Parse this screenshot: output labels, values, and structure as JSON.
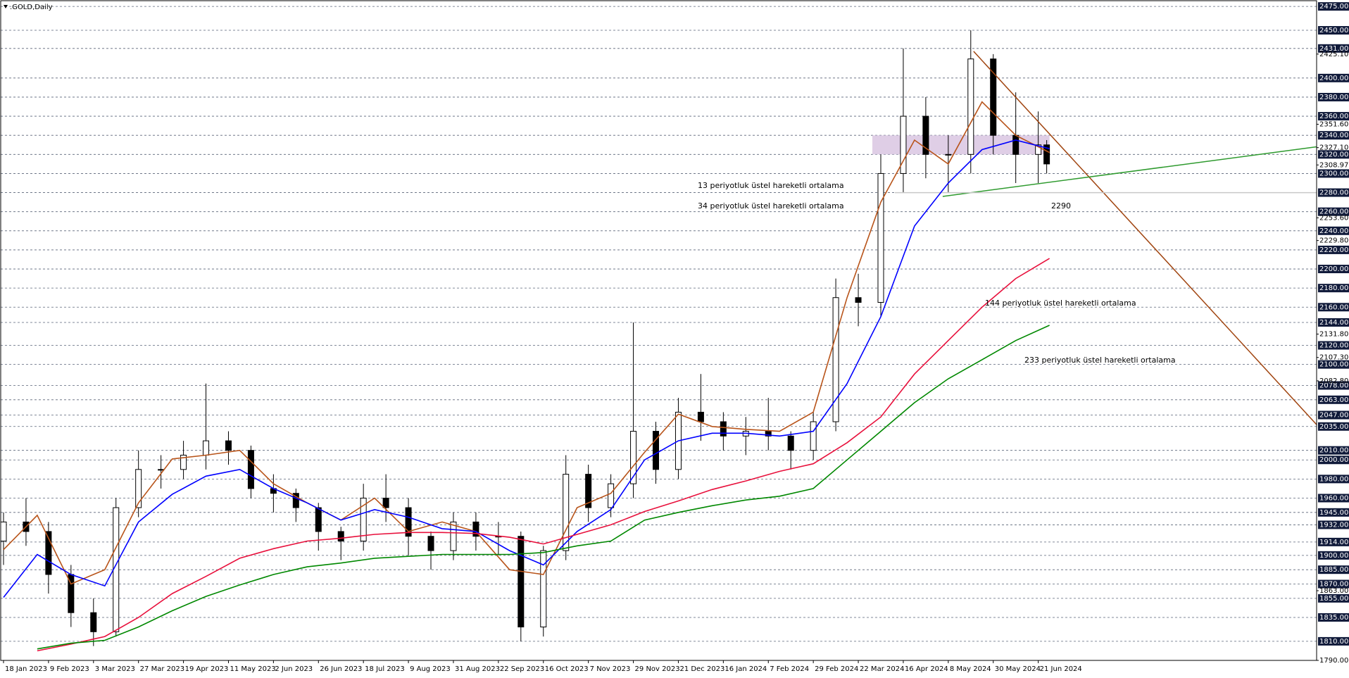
{
  "chart_data": {
    "type": "candlestick",
    "title": ".GOLD,Daily",
    "xlim": [
      -1,
      467
    ],
    "ylim": [
      1790,
      2481
    ],
    "grid": true,
    "xticks": [
      {
        "value": 0,
        "label": "18 Jan 2023"
      },
      {
        "value": 16,
        "label": "9 Feb 2023"
      },
      {
        "value": 32,
        "label": "3 Mar 2023"
      },
      {
        "value": 48,
        "label": "27 Mar 2023"
      },
      {
        "value": 64,
        "label": "19 Apr 2023"
      },
      {
        "value": 80,
        "label": "11 May 2023"
      },
      {
        "value": 96,
        "label": "2 Jun 2023"
      },
      {
        "value": 112,
        "label": "26 Jun 2023"
      },
      {
        "value": 128,
        "label": "18 Jul 2023"
      },
      {
        "value": 144,
        "label": "9 Aug 2023"
      },
      {
        "value": 160,
        "label": "31 Aug 2023"
      },
      {
        "value": 176,
        "label": "22 Sep 2023"
      },
      {
        "value": 192,
        "label": "16 Oct 2023"
      },
      {
        "value": 208,
        "label": "7 Nov 2023"
      },
      {
        "value": 224,
        "label": "29 Nov 2023"
      },
      {
        "value": 240,
        "label": "21 Dec 2023"
      },
      {
        "value": 256,
        "label": "16 Jan 2024"
      },
      {
        "value": 272,
        "label": "7 Feb 2024"
      },
      {
        "value": 288,
        "label": "29 Feb 2024"
      },
      {
        "value": 304,
        "label": "22 Mar 2024"
      },
      {
        "value": 320,
        "label": "16 Apr 2024"
      },
      {
        "value": 336,
        "label": "8 May 2024"
      },
      {
        "value": 352,
        "label": "30 May 2024"
      },
      {
        "value": 368,
        "label": "21 Jun 2024"
      }
    ],
    "yticks": [
      {
        "value": 2475,
        "label": "2475.00"
      },
      {
        "value": 2450,
        "label": "2450.00"
      },
      {
        "value": 2431,
        "label": "2431.00"
      },
      {
        "value": 2400,
        "label": "2400.00"
      },
      {
        "value": 2380,
        "label": "2380.00"
      },
      {
        "value": 2360,
        "label": "2360.00"
      },
      {
        "value": 2340,
        "label": "2340.00"
      },
      {
        "value": 2320,
        "label": "2320.00"
      },
      {
        "value": 2300,
        "label": "2300.00"
      },
      {
        "value": 2280,
        "label": "2280.00"
      },
      {
        "value": 2260,
        "label": "2260.00"
      },
      {
        "value": 2240,
        "label": "2240.00"
      },
      {
        "value": 2220,
        "label": "2220.00"
      },
      {
        "value": 2200,
        "label": "2200.00"
      },
      {
        "value": 2180,
        "label": "2180.00"
      },
      {
        "value": 2160,
        "label": "2160.00"
      },
      {
        "value": 2144,
        "label": "2144.00"
      },
      {
        "value": 2120,
        "label": "2120.00"
      },
      {
        "value": 2100,
        "label": "2100.00"
      },
      {
        "value": 2078,
        "label": "2078.00"
      },
      {
        "value": 2063,
        "label": "2063.00"
      },
      {
        "value": 2047,
        "label": "2047.00"
      },
      {
        "value": 2035,
        "label": "2035.00"
      },
      {
        "value": 2010,
        "label": "2010.00"
      },
      {
        "value": 2000,
        "label": "2000.00"
      },
      {
        "value": 1980,
        "label": "1980.00"
      },
      {
        "value": 1960,
        "label": "1960.00"
      },
      {
        "value": 1945,
        "label": "1945.00"
      },
      {
        "value": 1932,
        "label": "1932.00"
      },
      {
        "value": 1914,
        "label": "1914.00"
      },
      {
        "value": 1900,
        "label": "1900.00"
      },
      {
        "value": 1885,
        "label": "1885.00"
      },
      {
        "value": 1870,
        "label": "1870.00"
      },
      {
        "value": 1855,
        "label": "1855.00"
      },
      {
        "value": 1835,
        "label": "1835.00"
      },
      {
        "value": 1810,
        "label": "1810.00"
      }
    ],
    "minor_yticks": [
      {
        "value": 2425.1,
        "label": "2425.10"
      },
      {
        "value": 2351.6,
        "label": "2351.60"
      },
      {
        "value": 2327.1,
        "label": "2327.10"
      },
      {
        "value": 2308.97,
        "label": "2308.97"
      },
      {
        "value": 2253.6,
        "label": "2253.60"
      },
      {
        "value": 2229.8,
        "label": "2229.80"
      },
      {
        "value": 2131.8,
        "label": "2131.80"
      },
      {
        "value": 2107.3,
        "label": "2107.30"
      },
      {
        "value": 2082.8,
        "label": "2082.80"
      },
      {
        "value": 1863,
        "label": "1863.00"
      },
      {
        "value": 1790,
        "label": "1790.00"
      }
    ],
    "candles": {
      "x": [
        0,
        8,
        16,
        24,
        32,
        40,
        48,
        56,
        64,
        72,
        80,
        88,
        96,
        104,
        112,
        120,
        128,
        136,
        144,
        152,
        160,
        168,
        176,
        184,
        192,
        200,
        208,
        216,
        224,
        232,
        240,
        248,
        256,
        264,
        272,
        280,
        288,
        296,
        304,
        312,
        320,
        328,
        336,
        344,
        352,
        360,
        368,
        371
      ],
      "open": [
        1915,
        1935,
        1925,
        1880,
        1840,
        1820,
        1950,
        1990,
        1990,
        2005,
        2020,
        2010,
        1970,
        1965,
        1950,
        1925,
        1915,
        1960,
        1950,
        1920,
        1905,
        1935,
        1920,
        1920,
        1825,
        1905,
        1985,
        1950,
        1975,
        2030,
        1990,
        2050,
        2040,
        2025,
        2030,
        2025,
        2010,
        2040,
        2170,
        2165,
        2300,
        2360,
        2320,
        2320,
        2420,
        2340,
        2320,
        2330
      ],
      "high": [
        1945,
        1960,
        1935,
        1890,
        1855,
        1960,
        2010,
        2005,
        2020,
        2080,
        2030,
        2015,
        1985,
        1970,
        1955,
        1930,
        1975,
        1985,
        1960,
        1925,
        1945,
        1945,
        1935,
        1925,
        1910,
        2005,
        1995,
        1985,
        2144,
        2040,
        2065,
        2090,
        2050,
        2045,
        2065,
        2030,
        2050,
        2190,
        2195,
        2320,
        2431,
        2380,
        2340,
        2450,
        2425,
        2385,
        2365,
        2335
      ],
      "low": [
        1890,
        1910,
        1860,
        1825,
        1805,
        1815,
        1940,
        1970,
        1980,
        1990,
        1995,
        1960,
        1945,
        1935,
        1905,
        1895,
        1905,
        1935,
        1900,
        1885,
        1895,
        1905,
        1900,
        1810,
        1815,
        1895,
        1935,
        1940,
        1960,
        1975,
        1980,
        2020,
        2010,
        2005,
        2010,
        1990,
        2000,
        2030,
        2140,
        2150,
        2280,
        2295,
        2280,
        2300,
        2320,
        2290,
        2290,
        2300
      ],
      "close": [
        1935,
        1925,
        1880,
        1840,
        1820,
        1950,
        1990,
        1990,
        2005,
        2020,
        2010,
        1970,
        1965,
        1950,
        1925,
        1915,
        1960,
        1950,
        1920,
        1905,
        1935,
        1920,
        1920,
        1825,
        1905,
        1985,
        1950,
        1975,
        2030,
        1990,
        2050,
        2040,
        2025,
        2030,
        2025,
        2010,
        2040,
        2170,
        2165,
        2300,
        2360,
        2320,
        2320,
        2420,
        2340,
        2320,
        2330,
        2310
      ]
    },
    "ma_x": [
      0,
      12,
      24,
      36,
      48,
      60,
      72,
      84,
      96,
      108,
      120,
      132,
      144,
      156,
      168,
      180,
      192,
      204,
      216,
      228,
      240,
      252,
      264,
      276,
      288,
      300,
      312,
      324,
      336,
      348,
      360,
      372
    ],
    "series": [
      {
        "name": "13 periyotluk üstel hareketli ortalama",
        "color": "#b8541a",
        "values": [
          1906,
          1942,
          1870,
          1885,
          1955,
          2001,
          2005,
          2010,
          1975,
          1955,
          1937,
          1960,
          1925,
          1935,
          1925,
          1885,
          1880,
          1950,
          1965,
          2008,
          2048,
          2035,
          2032,
          2030,
          2050,
          2170,
          2270,
          2335,
          2310,
          2375,
          2340,
          2322
        ]
      },
      {
        "name": "34 periyotluk üstel hareketli ortalama",
        "color": "#0000ff",
        "values": [
          1856,
          1901,
          1880,
          1868,
          1935,
          1964,
          1983,
          1990,
          1970,
          1955,
          1937,
          1948,
          1940,
          1928,
          1925,
          1905,
          1890,
          1925,
          1948,
          2000,
          2020,
          2028,
          2028,
          2025,
          2030,
          2080,
          2150,
          2245,
          2290,
          2325,
          2335,
          2326
        ]
      },
      {
        "name": "144 periyotluk üstel hareketli ortalama",
        "color": "#e8103c",
        "values": [
          null,
          1800,
          1807,
          1815,
          1835,
          1860,
          1878,
          1897,
          1907,
          1915,
          1918,
          1922,
          1924,
          1924,
          1923,
          1919,
          1912,
          1922,
          1932,
          1946,
          1957,
          1969,
          1978,
          1988,
          1996,
          2018,
          2045,
          2090,
          2125,
          2160,
          2190,
          2211
        ]
      },
      {
        "name": "233 periyotluk üstel hareketli ortalama",
        "color": "#008800",
        "values": [
          null,
          1802,
          1808,
          1811,
          1825,
          1842,
          1857,
          1869,
          1880,
          1888,
          1892,
          1897,
          1899,
          1901,
          1901,
          1901,
          1903,
          1910,
          1915,
          1937,
          1945,
          1952,
          1958,
          1962,
          1970,
          2000,
          2030,
          2060,
          2085,
          2105,
          2125,
          2141
        ]
      }
    ],
    "trendlines": [
      {
        "color": "#a0440f",
        "x": [
          345,
          467
        ],
        "values": [
          2428,
          2037
        ]
      },
      {
        "color": "#2e9a2e",
        "x": [
          334,
          467
        ],
        "values": [
          2276,
          2328
        ]
      },
      {
        "color": "#c8c8c8",
        "x": [
          317,
          467
        ],
        "values": [
          2280,
          2280
        ]
      }
    ],
    "zone": {
      "color": "#d9c6e2",
      "x": [
        309,
        372
      ],
      "values": [
        2320,
        2340
      ]
    },
    "annotation": {
      "text": "2290",
      "color": "#2e9a2e"
    }
  }
}
